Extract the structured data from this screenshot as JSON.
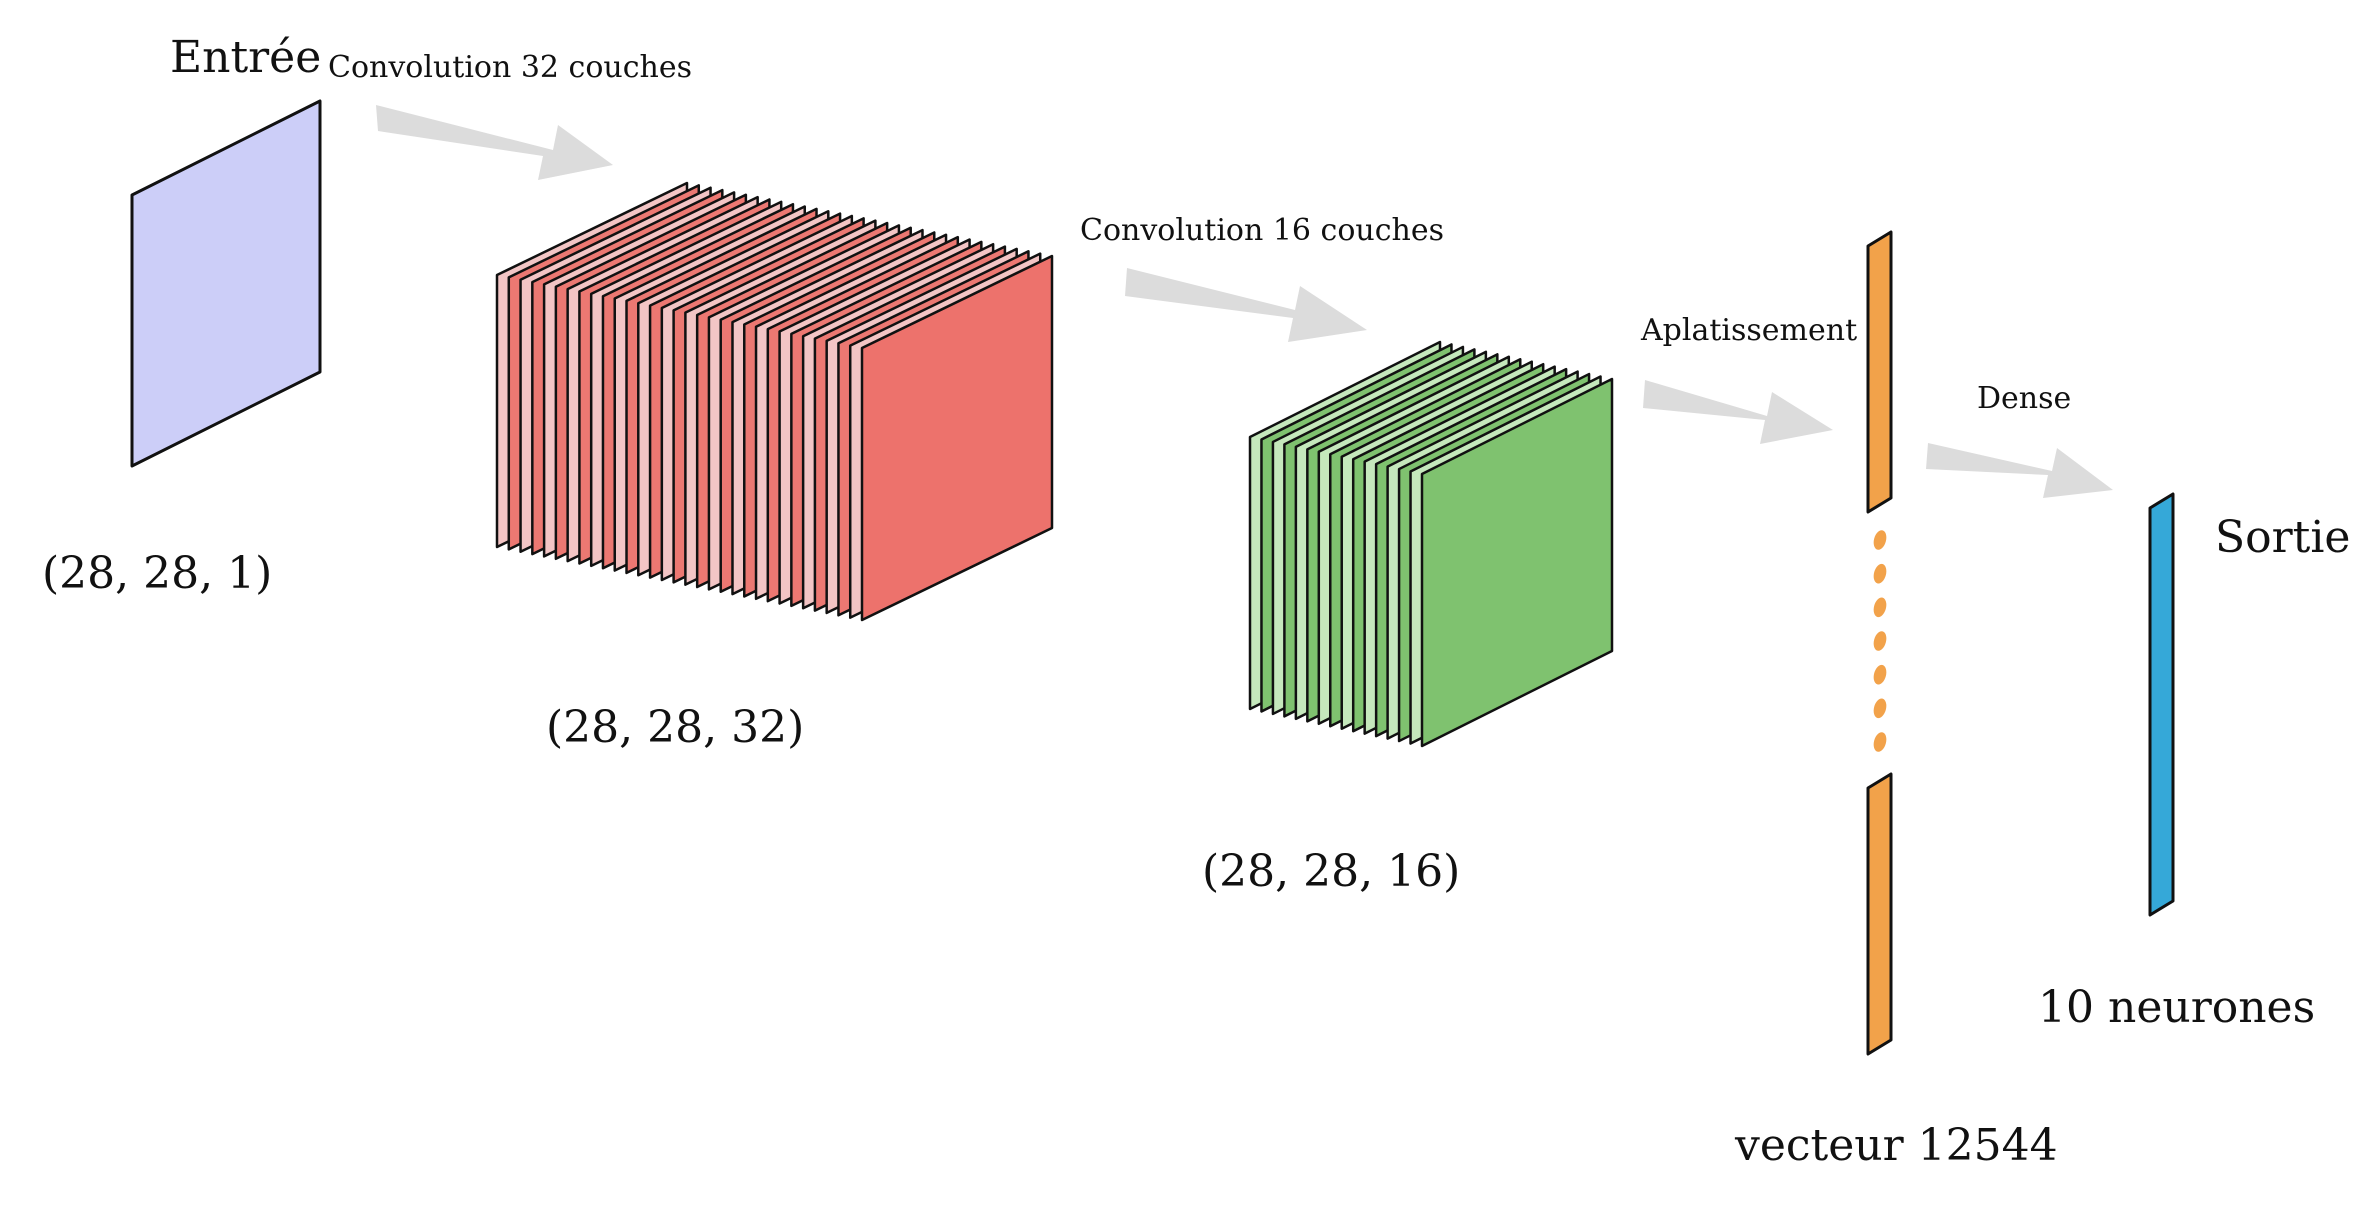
{
  "labels": {
    "input_title": "Entrée",
    "input_shape": "(28, 28, 1)",
    "conv1_caption": "Convolution 32 couches",
    "conv1_shape": "(28, 28, 32)",
    "conv2_caption": "Convolution 16 couches",
    "conv2_shape": "(28, 28, 16)",
    "flatten_caption": "Aplatissement",
    "flatten_vector": "vecteur 12544",
    "dense_caption": "Dense",
    "output_title": "Sortie",
    "output_neurons": "10 neurones"
  },
  "colors": {
    "input_fill": "#cccef8",
    "conv1_front_fill": "#ed726c",
    "conv1_light_fill": "#f3c5c5",
    "conv1_mid_fill": "#ec7872",
    "conv2_front_fill": "#7fc26f",
    "conv2_light_fill": "#c5e8bc",
    "conv2_mid_fill": "#7fc26f",
    "flatten_fill": "#f2a24a",
    "output_fill": "#35a8d8",
    "arrow_fill": "#dcdcdc",
    "stroke": "#111111"
  },
  "layers": {
    "conv1_layer_count": 32,
    "conv2_layer_count": 16,
    "flatten_dot_count": 7
  }
}
